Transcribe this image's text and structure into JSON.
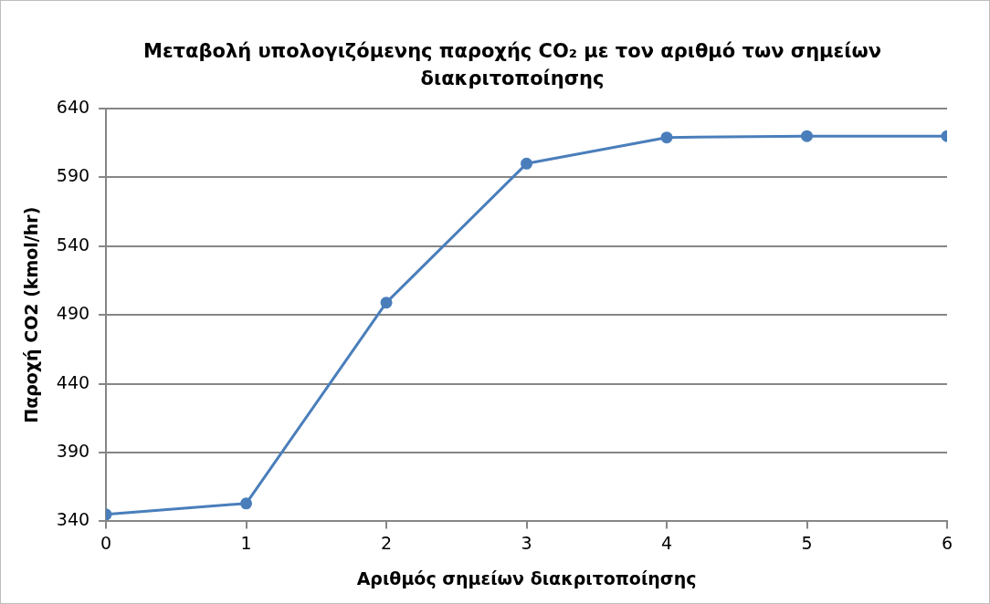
{
  "chart_data": {
    "type": "line",
    "title": "Μεταβολή υπολογιζόμενης παροχής CO₂ με τον αριθμό των σημείων διακριτοποίησης",
    "xlabel": "Αριθμός σημείων διακριτοποίησης",
    "ylabel": "Παροχή CO2 (kmol/hr)",
    "x": [
      0,
      1,
      2,
      3,
      4,
      5,
      6
    ],
    "series": [
      {
        "color": "#4a7ebb",
        "values": [
          345,
          353,
          499,
          600,
          619,
          620,
          620
        ]
      }
    ],
    "xlim": [
      0,
      6
    ],
    "xticks": [
      0,
      1,
      2,
      3,
      4,
      5,
      6
    ],
    "ylim": [
      340,
      640
    ],
    "yticks": [
      340,
      390,
      440,
      490,
      540,
      590,
      640
    ],
    "grid": "y",
    "legend": false,
    "marker": "circle",
    "line_style": "solid"
  }
}
